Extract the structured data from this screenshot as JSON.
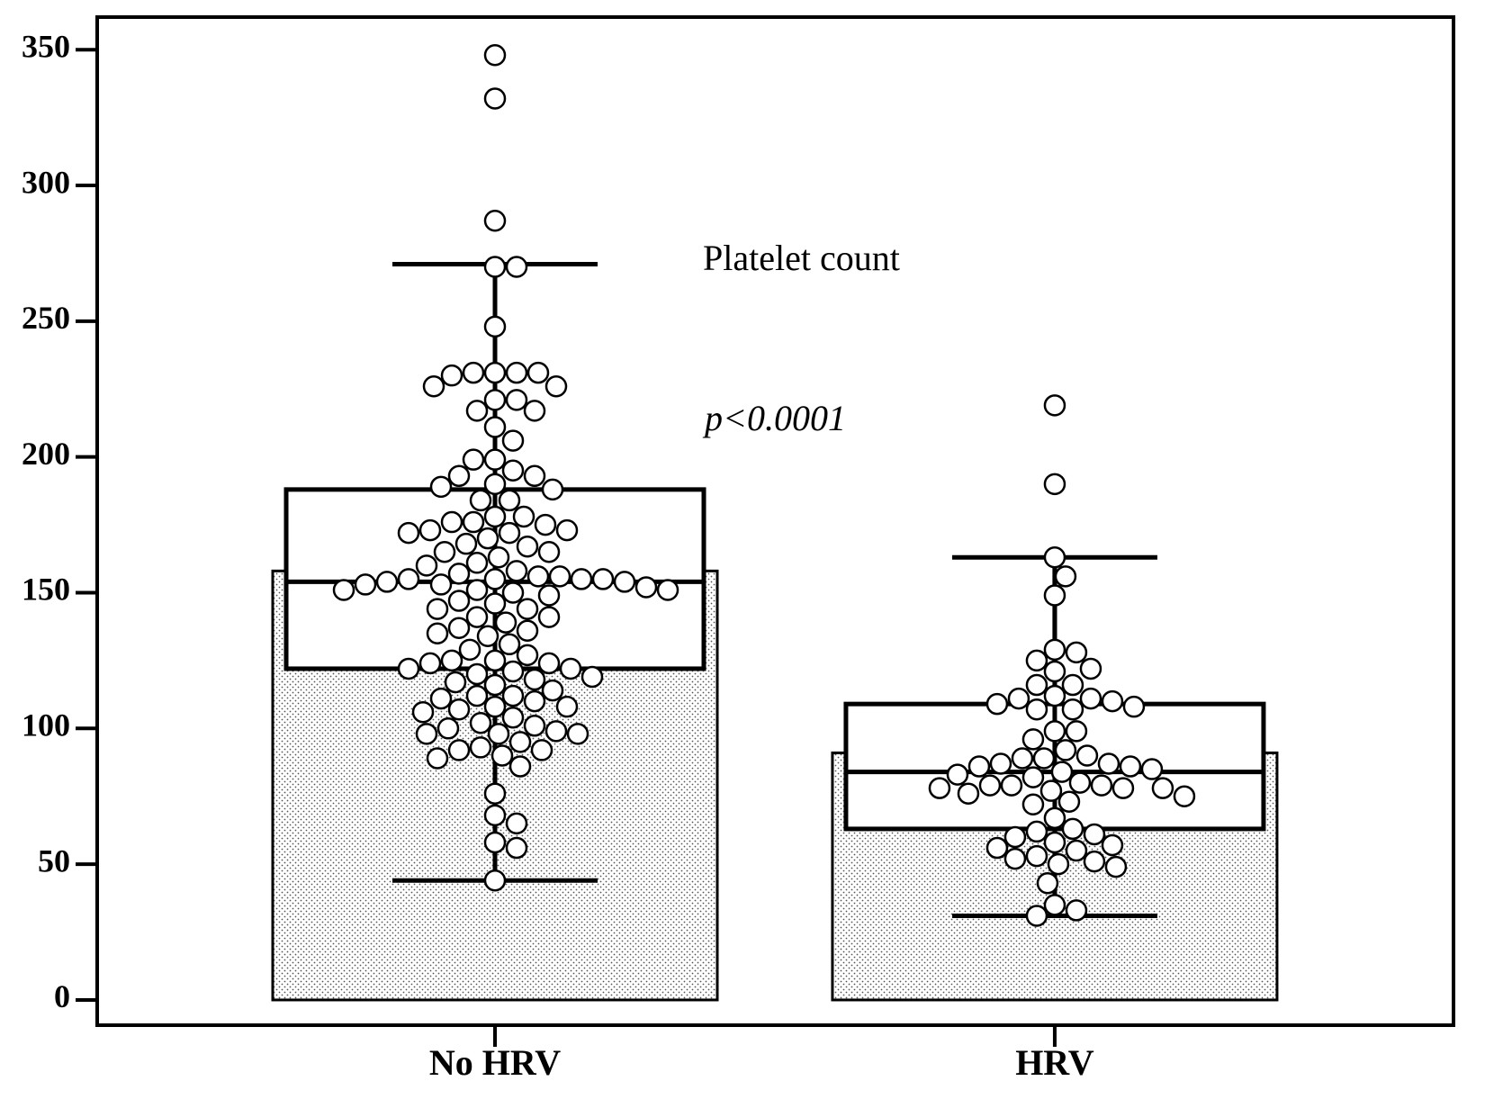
{
  "chart_data": {
    "type": "box_bar",
    "annotations": [
      "Platelet count",
      "p<0.0001"
    ],
    "categories": [
      "No HRV",
      "HRV"
    ],
    "means": [
      158,
      91
    ],
    "boxes": [
      {
        "whisker_low": 44,
        "q1": 122,
        "median": 154,
        "q3": 188,
        "whisker_high": 271
      },
      {
        "whisker_low": 31,
        "q1": 63,
        "median": 84,
        "q3": 109,
        "whisker_high": 163
      }
    ],
    "points": [
      [
        348,
        332,
        287,
        270,
        270,
        248,
        231,
        231,
        231,
        231,
        230,
        226,
        226,
        221,
        221,
        217,
        217,
        211,
        206,
        199,
        199,
        195,
        193,
        193,
        190,
        189,
        188,
        184,
        184,
        178,
        178,
        176,
        176,
        175,
        173,
        173,
        172,
        172,
        170,
        168,
        167,
        165,
        165,
        163,
        161,
        160,
        158,
        157,
        156,
        156,
        155,
        155,
        155,
        155,
        154,
        154,
        153,
        153,
        152,
        151,
        151,
        151,
        150,
        149,
        147,
        146,
        144,
        144,
        141,
        141,
        139,
        137,
        136,
        135,
        134,
        131,
        129,
        127,
        125,
        125,
        124,
        124,
        122,
        122,
        121,
        120,
        119,
        118,
        117,
        116,
        114,
        112,
        112,
        111,
        110,
        108,
        108,
        107,
        106,
        104,
        102,
        101,
        100,
        99,
        98,
        98,
        98,
        95,
        93,
        92,
        92,
        90,
        89,
        86,
        76,
        68,
        65,
        58,
        56,
        44
      ],
      [
        219,
        190,
        163,
        156,
        149,
        129,
        128,
        125,
        122,
        121,
        116,
        116,
        112,
        111,
        111,
        110,
        109,
        108,
        107,
        107,
        99,
        99,
        96,
        92,
        90,
        89,
        89,
        87,
        87,
        86,
        86,
        85,
        84,
        83,
        82,
        80,
        79,
        79,
        79,
        78,
        78,
        78,
        77,
        76,
        75,
        73,
        72,
        67,
        63,
        62,
        61,
        60,
        58,
        57,
        56,
        55,
        53,
        52,
        51,
        50,
        49,
        43,
        35,
        33,
        31
      ]
    ],
    "ylim": [
      -9.3,
      362
    ],
    "yticks": [
      0,
      50,
      100,
      150,
      200,
      250,
      300,
      350
    ]
  }
}
